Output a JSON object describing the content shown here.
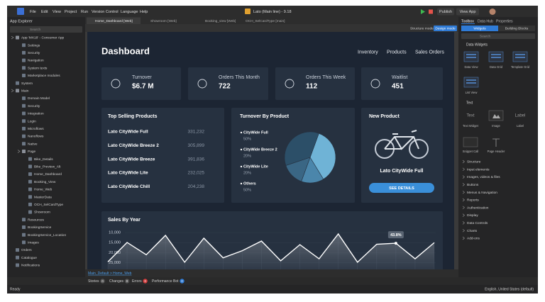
{
  "menu_bar": {
    "items": [
      "File",
      "Edit",
      "View",
      "Project",
      "Run",
      "Version Control",
      "Language",
      "Help"
    ],
    "app_title": "Lato (Main line) - 9.18",
    "publish": "Publish",
    "view_app": "View App"
  },
  "tabs": [
    "Home_Dashboard [Web]",
    "Showroom [Web]",
    "Booking_view [Web]",
    "OCH_SelCardType [main]"
  ],
  "canvas_toolbar": {
    "structure_mode": "Structure mode",
    "design_mode": "Design mode"
  },
  "app_explorer": {
    "title": "App Explorer",
    "search": "Search",
    "tree": [
      {
        "label": "App 'MX18' - Consumer App",
        "children": [
          {
            "label": "Settings"
          },
          {
            "label": "Security"
          },
          {
            "label": "Navigation"
          },
          {
            "label": "System texts"
          },
          {
            "label": "Marketplace modules"
          }
        ]
      },
      {
        "label": "System"
      },
      {
        "label": "Main",
        "children": [
          {
            "label": "Domain Model"
          },
          {
            "label": "Security"
          },
          {
            "label": "Integration"
          },
          {
            "label": "Login"
          },
          {
            "label": "Microflows"
          },
          {
            "label": "Nanoflows"
          },
          {
            "label": "Native"
          },
          {
            "label": "Page",
            "children": [
              {
                "label": "Bike_Details"
              },
              {
                "label": "Bike_Preview_Alt"
              },
              {
                "label": "Home_Dashboard"
              },
              {
                "label": "Booking_View"
              },
              {
                "label": "Home_Web"
              },
              {
                "label": "MasterData"
              },
              {
                "label": "OCH_SelCardType"
              },
              {
                "label": "Showroom"
              }
            ]
          },
          {
            "label": "Resources"
          },
          {
            "label": "BookingService"
          },
          {
            "label": "BookingService_Location"
          },
          {
            "label": "Images"
          }
        ]
      },
      {
        "label": "Orders"
      },
      {
        "label": "Catalogue"
      },
      {
        "label": "Notifications"
      }
    ]
  },
  "toolbox": {
    "tabs": [
      "Toolbox",
      "Data Hub",
      "Properties"
    ],
    "subtabs": [
      "Widgets",
      "Building Blocks"
    ],
    "search": "Search",
    "data_widgets": {
      "title": "Data Widgets",
      "items": [
        "Data View",
        "Data Grid",
        "Template Grid",
        "List View"
      ]
    },
    "text": {
      "title": "Text",
      "previews": [
        "Text",
        "Label"
      ],
      "items": [
        "Text Widget",
        "Image",
        "Label",
        "Snippet Call",
        "Page Header"
      ]
    },
    "sections": [
      "Structure",
      "Input elements",
      "Images, videos & files",
      "Buttons",
      "Menus & Navigation",
      "Reports",
      "Authentication",
      "Display",
      "Data Controls",
      "Charts",
      "Add-ons"
    ]
  },
  "dashboard": {
    "title": "Dashboard",
    "nav": [
      "Inventory",
      "Products",
      "Sales Orders"
    ],
    "cards": [
      {
        "label": "Turnover",
        "value": "$6.7 M"
      },
      {
        "label": "Orders This Month",
        "value": "722"
      },
      {
        "label": "Orders This Week",
        "value": "112"
      },
      {
        "label": "Waitlist",
        "value": "451"
      }
    ],
    "top_selling": {
      "title": "Top Selling Products",
      "rows": [
        [
          "Lato CityWide Full",
          "331,232"
        ],
        [
          "Lato CityWide Breeze 2",
          "305,899"
        ],
        [
          "Lato CityWide Breeze",
          "391,836"
        ],
        [
          "Lato CityWide Lite",
          "232,025"
        ],
        [
          "Lato CityWide Chill",
          "204,238"
        ]
      ]
    },
    "turnover_chart": {
      "type": "pie",
      "title": "Turnover By Product",
      "categories": [
        "CityWide Full",
        "CityWide Breeze 2",
        "CityWide Lite",
        "Others"
      ],
      "values": [
        50,
        20,
        20,
        50
      ],
      "value_labels": [
        "50%",
        "20%",
        "20%",
        "50%"
      ],
      "colors": [
        "#6fb3d6",
        "#4b86ab",
        "#3a6684",
        "#2c4f68"
      ]
    },
    "new_product": {
      "title": "New Product",
      "name": "Lato CityWide Full",
      "button": "SEE DETAILS"
    },
    "sales_chart": {
      "type": "line",
      "title": "Sales By Year",
      "categories": [
        null,
        null,
        null,
        null,
        null,
        null,
        null,
        null,
        null,
        null,
        null,
        null,
        null,
        null,
        null,
        null,
        null,
        null
      ],
      "values": [
        24500,
        14900,
        21000,
        11400,
        24700,
        12800,
        22500,
        19000,
        14200,
        24000,
        16000,
        23000,
        10700,
        24700,
        15800,
        15300,
        23000,
        15000
      ],
      "color": "#ffffff",
      "ylim": [
        30000,
        10000
      ],
      "yticks": [
        {
          "value": 10000,
          "label": "10,000"
        },
        {
          "value": 15000,
          "label": "15,000"
        },
        {
          "value": 20000,
          "label": "20,000"
        },
        {
          "value": 25000,
          "label": "25,000"
        }
      ],
      "annotation": {
        "index": 15,
        "text": "43.8%"
      }
    }
  },
  "breadcrumb": "Main_Default > Home_Web",
  "status_tabs": [
    {
      "label": "Stories",
      "count": 0
    },
    {
      "label": "Changes",
      "count": 0
    },
    {
      "label": "Errors",
      "count": 0
    },
    {
      "label": "Performance Bot",
      "count": 0
    }
  ],
  "footer": {
    "status": "Ready",
    "language": "English, United States (default)"
  }
}
